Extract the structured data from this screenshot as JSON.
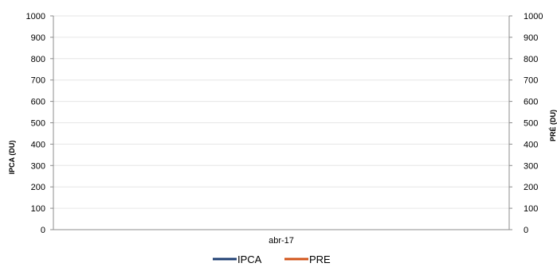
{
  "chart_data": {
    "type": "line",
    "title": "",
    "categories": [
      "abr-17"
    ],
    "series": [
      {
        "name": "IPCA",
        "axis": "left",
        "color": "#1f3f73",
        "values": [
          null
        ]
      },
      {
        "name": "PRE",
        "axis": "right",
        "color": "#d2541a",
        "values": [
          null
        ]
      }
    ],
    "ylabel_left": "IPCA (DU)",
    "ylabel_right": "PRÉ (DU)",
    "ylim_left": [
      0,
      1000
    ],
    "ylim_right": [
      0,
      1000
    ],
    "yticks_left": [
      "0",
      "100",
      "200",
      "300",
      "400",
      "500",
      "600",
      "700",
      "800",
      "900",
      "1000"
    ],
    "yticks_right": [
      "0",
      "100",
      "200",
      "300",
      "400",
      "500",
      "600",
      "700",
      "800",
      "900",
      "1000"
    ],
    "grid": true,
    "legend_position": "bottom"
  }
}
